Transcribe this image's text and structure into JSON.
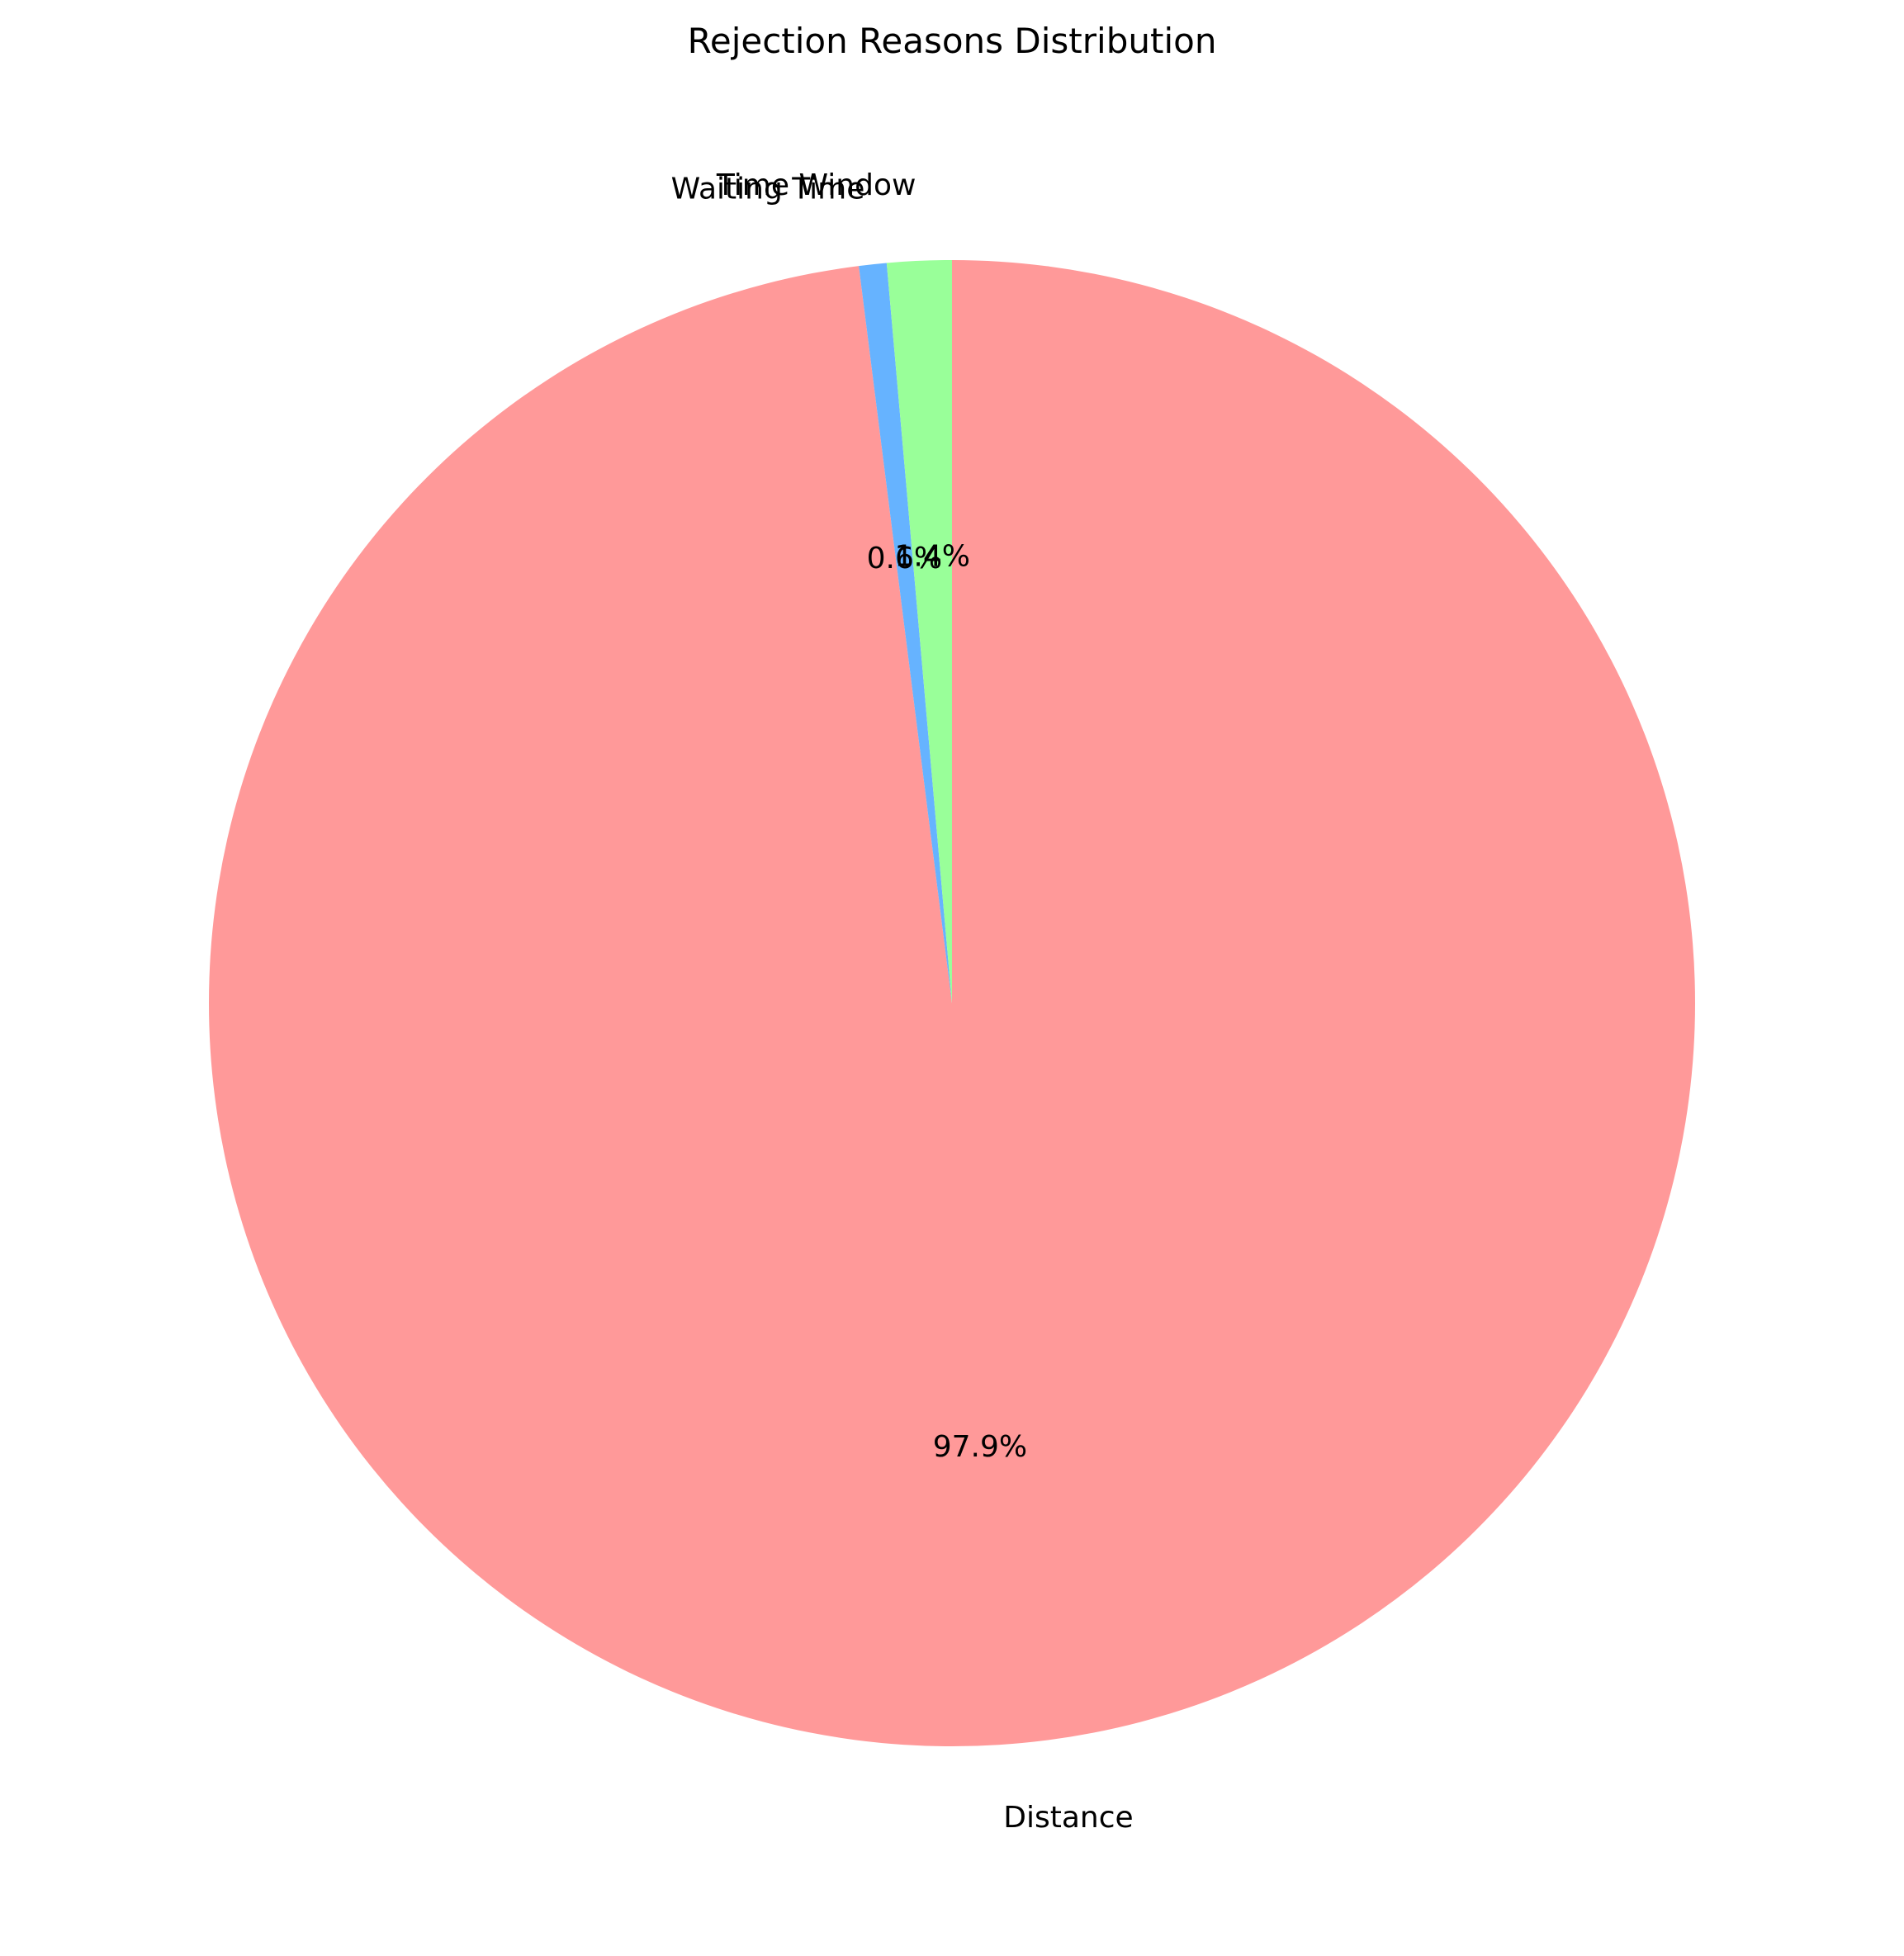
{
  "chart_data": {
    "type": "pie",
    "title": "Rejection Reasons Distribution",
    "start_angle_deg": 90,
    "direction": "clockwise",
    "slices": [
      {
        "label": "Distance",
        "value": 97.9,
        "pct_label": "97.9%",
        "color": "#ff9999"
      },
      {
        "label": "Waiting Time",
        "value": 0.6,
        "pct_label": "0.6%",
        "color": "#66b3ff"
      },
      {
        "label": "Time Window",
        "value": 1.4,
        "pct_label": "1.4%",
        "color": "#99ff99"
      }
    ]
  }
}
